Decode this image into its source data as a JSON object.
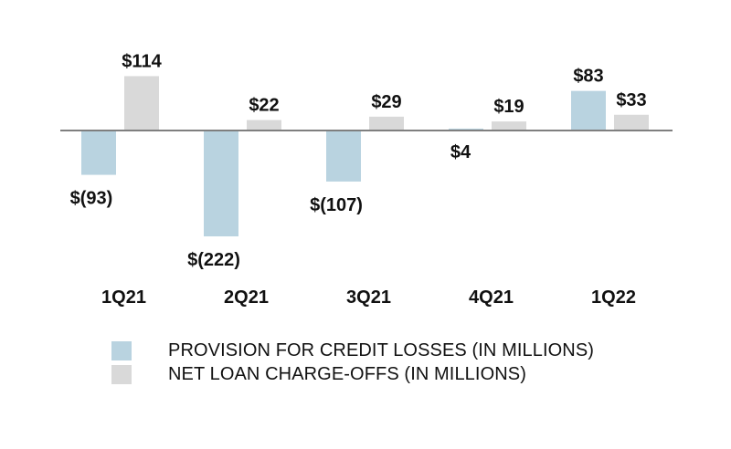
{
  "chart_data": {
    "type": "bar",
    "title": "",
    "xlabel": "",
    "ylabel": "",
    "categories": [
      "1Q21",
      "2Q21",
      "3Q21",
      "4Q21",
      "1Q22"
    ],
    "series": [
      {
        "name": "PROVISION FOR CREDIT LOSSES (IN MILLIONS)",
        "color": "#b9d3e0",
        "values": [
          -93,
          -222,
          -107,
          4,
          83
        ],
        "labels": [
          "$(93)",
          "$(222)",
          "$(107)",
          "$4",
          "$83"
        ]
      },
      {
        "name": "NET LOAN CHARGE-OFFS (IN MILLIONS)",
        "color": "#d9d9d9",
        "values": [
          114,
          22,
          29,
          19,
          33
        ],
        "labels": [
          "$114",
          "$22",
          "$29",
          "$19",
          "$33"
        ]
      }
    ],
    "ylim": [
      -222,
      114
    ],
    "grid": false,
    "legend": "bottom-left"
  },
  "legend": {
    "items": [
      {
        "label": "PROVISION FOR CREDIT LOSSES (IN MILLIONS)",
        "color": "#b9d3e0"
      },
      {
        "label": "NET LOAN CHARGE-OFFS (IN MILLIONS)",
        "color": "#d9d9d9"
      }
    ]
  }
}
